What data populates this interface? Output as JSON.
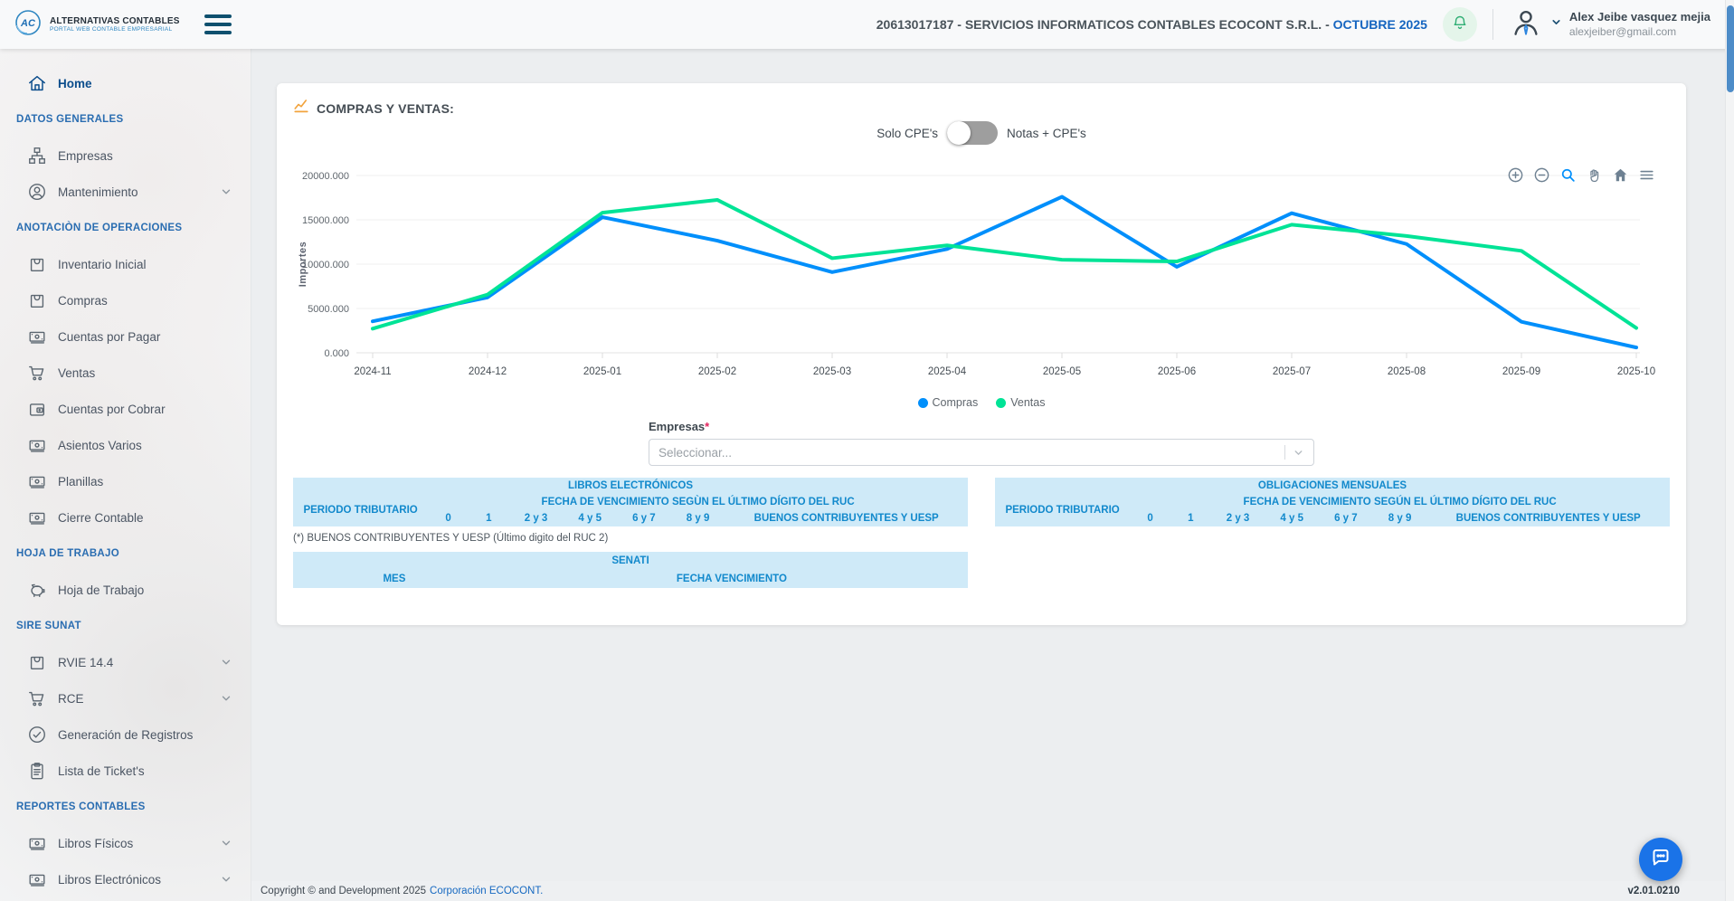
{
  "header": {
    "brand": {
      "title": "ALTERNATIVAS CONTABLES",
      "subtitle": "PORTAL WEB CONTABLE EMPRESARIAL"
    },
    "company_line": "20613017187 - SERVICIOS INFORMATICOS CONTABLES ECOCONT S.R.L. - ",
    "period": "OCTUBRE 2025",
    "user": {
      "name": "Alex Jeibe vasquez mejia",
      "email": "alexjeiber@gmail.com"
    }
  },
  "sidebar": {
    "items": [
      {
        "type": "item",
        "icon": "home-icon",
        "label": "Home",
        "active": true
      },
      {
        "type": "section",
        "label": "DATOS GENERALES"
      },
      {
        "type": "item",
        "icon": "org-icon",
        "label": "Empresas"
      },
      {
        "type": "item",
        "icon": "user-circle-icon",
        "label": "Mantenimiento",
        "chevron": true
      },
      {
        "type": "section",
        "label": "ANOTACIÒN DE OPERACIONES"
      },
      {
        "type": "item",
        "icon": "bag-icon",
        "label": "Inventario Inicial"
      },
      {
        "type": "item",
        "icon": "bag-icon",
        "label": "Compras"
      },
      {
        "type": "item",
        "icon": "banknote-icon",
        "label": "Cuentas por Pagar"
      },
      {
        "type": "item",
        "icon": "cart-icon",
        "label": "Ventas"
      },
      {
        "type": "item",
        "icon": "wallet-icon",
        "label": "Cuentas por Cobrar"
      },
      {
        "type": "item",
        "icon": "banknote-icon",
        "label": "Asientos Varios"
      },
      {
        "type": "item",
        "icon": "banknote-icon",
        "label": "Planillas"
      },
      {
        "type": "item",
        "icon": "banknote-icon",
        "label": "Cierre Contable"
      },
      {
        "type": "section",
        "label": "HOJA DE TRABAJO"
      },
      {
        "type": "item",
        "icon": "piggy-bank-icon",
        "label": "Hoja de Trabajo"
      },
      {
        "type": "section",
        "label": "SIRE SUNAT"
      },
      {
        "type": "item",
        "icon": "bag-icon",
        "label": "RVIE 14.4",
        "chevron": true
      },
      {
        "type": "item",
        "icon": "cart-icon",
        "label": "RCE",
        "chevron": true
      },
      {
        "type": "item",
        "icon": "check-circle-icon",
        "label": "Generación de Registros"
      },
      {
        "type": "item",
        "icon": "clipboard-icon",
        "label": "Lista de Ticket's"
      },
      {
        "type": "section",
        "label": "REPORTES CONTABLES"
      },
      {
        "type": "item",
        "icon": "banknote-icon",
        "label": "Libros Físicos",
        "chevron": true
      },
      {
        "type": "item",
        "icon": "banknote-icon",
        "label": "Libros Electrónicos",
        "chevron": true
      }
    ]
  },
  "main": {
    "card_title": "COMPRAS Y VENTAS:",
    "toggle": {
      "left_label": "Solo CPE's",
      "right_label": "Notas + CPE's"
    },
    "empresas": {
      "label": "Empresas",
      "required_mark": "*",
      "placeholder": "Seleccionar..."
    },
    "note": "(*) BUENOS CONTRIBUYENTES Y UESP (Último digito del RUC 2)",
    "tables": {
      "periodo_label": "PERIODO TRIBUTARIO",
      "ruc_digits": [
        "0",
        "1",
        "2 y 3",
        "4 y 5",
        "6 y 7",
        "8 y 9",
        "BUENOS CONTRIBUYENTES Y UESP"
      ],
      "libros": {
        "title": "LIBROS ELECTRÓNICOS",
        "fecha_label": "FECHA DE VENCIMIENTO SEGÙN EL ÚLTIMO DÍGITO DEL RUC"
      },
      "obligaciones": {
        "title": "OBLIGACIONES MENSUALES",
        "fecha_label": "FECHA DE VENCIMIENTO SEGÚN EL ÚLTIMO DÍGITO DEL RUC"
      },
      "senati": {
        "title": "SENATI",
        "col1": "MES",
        "col2": "FECHA VENCIMIENTO"
      }
    }
  },
  "chart_data": {
    "type": "line",
    "title": "COMPRAS Y VENTAS",
    "categories": [
      "2024-11",
      "2024-12",
      "2025-01",
      "2025-02",
      "2025-03",
      "2025-04",
      "2025-05",
      "2025-06",
      "2025-07",
      "2025-08",
      "2025-09",
      "2025-10"
    ],
    "series": [
      {
        "name": "Compras",
        "color": "#008FFB",
        "values": [
          3550,
          6250,
          15300,
          12650,
          9100,
          11700,
          17600,
          9700,
          15750,
          12270,
          3500,
          600
        ]
      },
      {
        "name": "Ventas",
        "color": "#00E396",
        "values": [
          2720,
          6570,
          15800,
          17250,
          10670,
          12120,
          10500,
          10300,
          14450,
          13180,
          11500,
          2800
        ]
      }
    ],
    "xlabel": "",
    "ylabel": "Importes",
    "ylim": [
      0,
      20000
    ],
    "yticks": [
      0,
      5000,
      10000,
      15000,
      20000
    ],
    "ytick_format": "fixed3",
    "grid": true,
    "legend_position": "bottom"
  },
  "footer": {
    "copyright": "Copyright © and Development 2025",
    "link_text": "Corporación ECOCONT.",
    "version": "v2.01.0210"
  }
}
